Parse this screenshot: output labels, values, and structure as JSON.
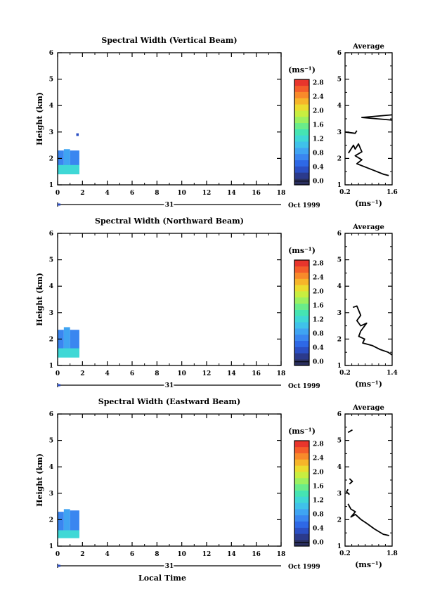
{
  "page": {
    "bottom_xlabel": "Local Time"
  },
  "colorbar": {
    "unit_label": "(ms⁻¹)",
    "colors": [
      "#2a2f5e",
      "#2b3a8c",
      "#2b4fc4",
      "#2e68e6",
      "#3a86f0",
      "#3fa4f2",
      "#3fc2ea",
      "#3fd8d6",
      "#45e4b3",
      "#6aec8a",
      "#9cf060",
      "#c8ee40",
      "#ecdc2f",
      "#f6b52a",
      "#f88a2a",
      "#f45d2a",
      "#e8352c"
    ],
    "tick_labels": [
      "2.8",
      "2.4",
      "2.0",
      "1.6",
      "1.2",
      "0.8",
      "0.4",
      "0.0"
    ]
  },
  "chart_data": [
    {
      "type": "heatmap",
      "title": "Spectral Width (Vertical Beam)",
      "ylabel": "Height (km)",
      "xlim": [
        0,
        18
      ],
      "ylim": [
        1,
        6
      ],
      "x_ticks": [
        "0",
        "2",
        "4",
        "6",
        "8",
        "10",
        "12",
        "14",
        "16",
        "18"
      ],
      "y_ticks": [
        "1",
        "2",
        "3",
        "4",
        "5",
        "6"
      ],
      "date_label": "31",
      "month_label": "Oct 1999",
      "cells": [
        {
          "x0": 0,
          "x1": 0.5,
          "y0": 1.4,
          "y1": 2.3,
          "v": 0.8
        },
        {
          "x0": 0.5,
          "x1": 1.0,
          "y0": 1.4,
          "y1": 2.35,
          "v": 0.9
        },
        {
          "x0": 1.0,
          "x1": 1.75,
          "y0": 1.4,
          "y1": 2.3,
          "v": 0.8
        },
        {
          "x0": 0,
          "x1": 1.75,
          "y0": 1.4,
          "y1": 1.75,
          "v": 1.3
        },
        {
          "x0": 1.5,
          "x1": 1.7,
          "y0": 2.85,
          "y1": 2.95,
          "v": 0.5
        }
      ],
      "avg": {
        "title": "Average",
        "xlim": [
          0.2,
          1.6
        ],
        "xticks": [
          "0.2",
          "1.6"
        ],
        "xlabel": "(ms⁻¹)",
        "segments": [
          [
            [
              0.2,
              3.0
            ],
            [
              0.5,
              2.95
            ],
            [
              0.55,
              3.05
            ]
          ],
          [
            [
              1.6,
              3.65
            ],
            [
              0.7,
              3.55
            ],
            [
              1.6,
              3.45
            ]
          ],
          [
            [
              0.3,
              2.2
            ],
            [
              0.45,
              2.5
            ],
            [
              0.5,
              2.35
            ],
            [
              0.6,
              2.55
            ],
            [
              0.7,
              2.25
            ],
            [
              0.5,
              2.1
            ],
            [
              0.7,
              1.95
            ],
            [
              0.55,
              1.8
            ],
            [
              0.85,
              1.65
            ],
            [
              1.05,
              1.55
            ],
            [
              1.35,
              1.4
            ],
            [
              1.5,
              1.35
            ]
          ]
        ]
      }
    },
    {
      "type": "heatmap",
      "title": "Spectral Width (Northward Beam)",
      "ylabel": "Height (km)",
      "xlim": [
        0,
        18
      ],
      "ylim": [
        1,
        6
      ],
      "x_ticks": [
        "0",
        "2",
        "4",
        "6",
        "8",
        "10",
        "12",
        "14",
        "16",
        "18"
      ],
      "y_ticks": [
        "1",
        "2",
        "3",
        "4",
        "5",
        "6"
      ],
      "date_label": "31",
      "month_label": "Oct 1999",
      "cells": [
        {
          "x0": 0,
          "x1": 0.5,
          "y0": 1.35,
          "y1": 2.35,
          "v": 0.8
        },
        {
          "x0": 0.5,
          "x1": 1.0,
          "y0": 1.35,
          "y1": 2.45,
          "v": 0.9
        },
        {
          "x0": 1.0,
          "x1": 1.75,
          "y0": 1.35,
          "y1": 2.35,
          "v": 0.8
        },
        {
          "x0": 0,
          "x1": 1.75,
          "y0": 1.3,
          "y1": 1.65,
          "v": 1.3
        }
      ],
      "avg": {
        "title": "Average",
        "xlim": [
          0.2,
          1.4
        ],
        "xticks": [
          "0.2",
          "1.4"
        ],
        "xlabel": "(ms⁻¹)",
        "segments": [
          [
            [
              0.4,
              3.2
            ],
            [
              0.5,
              3.25
            ],
            [
              0.6,
              2.9
            ],
            [
              0.5,
              2.7
            ],
            [
              0.6,
              2.5
            ],
            [
              0.75,
              2.6
            ],
            [
              0.6,
              2.3
            ],
            [
              0.55,
              2.1
            ],
            [
              0.7,
              2.0
            ],
            [
              0.65,
              1.85
            ],
            [
              0.9,
              1.75
            ],
            [
              1.1,
              1.6
            ],
            [
              1.3,
              1.5
            ],
            [
              1.4,
              1.4
            ]
          ]
        ]
      }
    },
    {
      "type": "heatmap",
      "title": "Spectral Width (Eastward Beam)",
      "ylabel": "Height (km)",
      "xlim": [
        0,
        18
      ],
      "ylim": [
        1,
        6
      ],
      "x_ticks": [
        "0",
        "2",
        "4",
        "6",
        "8",
        "10",
        "12",
        "14",
        "16",
        "18"
      ],
      "y_ticks": [
        "1",
        "2",
        "3",
        "4",
        "5",
        "6"
      ],
      "date_label": "31",
      "month_label": "Oct 1999",
      "cells": [
        {
          "x0": 0,
          "x1": 0.5,
          "y0": 1.35,
          "y1": 2.3,
          "v": 0.8
        },
        {
          "x0": 0.5,
          "x1": 1.0,
          "y0": 1.35,
          "y1": 2.4,
          "v": 0.9
        },
        {
          "x0": 1.0,
          "x1": 1.75,
          "y0": 1.35,
          "y1": 2.35,
          "v": 0.8
        },
        {
          "x0": 0,
          "x1": 1.75,
          "y0": 1.3,
          "y1": 1.6,
          "v": 1.3
        }
      ],
      "avg": {
        "title": "Average",
        "xlim": [
          0.2,
          1.8
        ],
        "xticks": [
          "0.2",
          "1.8"
        ],
        "xlabel": "(ms⁻¹)",
        "segments": [
          [
            [
              0.3,
              5.3
            ],
            [
              0.45,
              5.4
            ]
          ],
          [
            [
              0.35,
              3.55
            ],
            [
              0.45,
              3.45
            ],
            [
              0.35,
              3.35
            ]
          ],
          [
            [
              0.3,
              3.15
            ],
            [
              0.25,
              3.05
            ],
            [
              0.35,
              2.95
            ]
          ],
          [
            [
              0.3,
              2.6
            ],
            [
              0.4,
              2.4
            ],
            [
              0.55,
              2.3
            ],
            [
              0.4,
              2.1
            ],
            [
              0.55,
              2.2
            ],
            [
              0.75,
              2.0
            ],
            [
              0.95,
              1.85
            ],
            [
              1.2,
              1.65
            ],
            [
              1.5,
              1.45
            ],
            [
              1.7,
              1.4
            ]
          ]
        ]
      }
    }
  ]
}
